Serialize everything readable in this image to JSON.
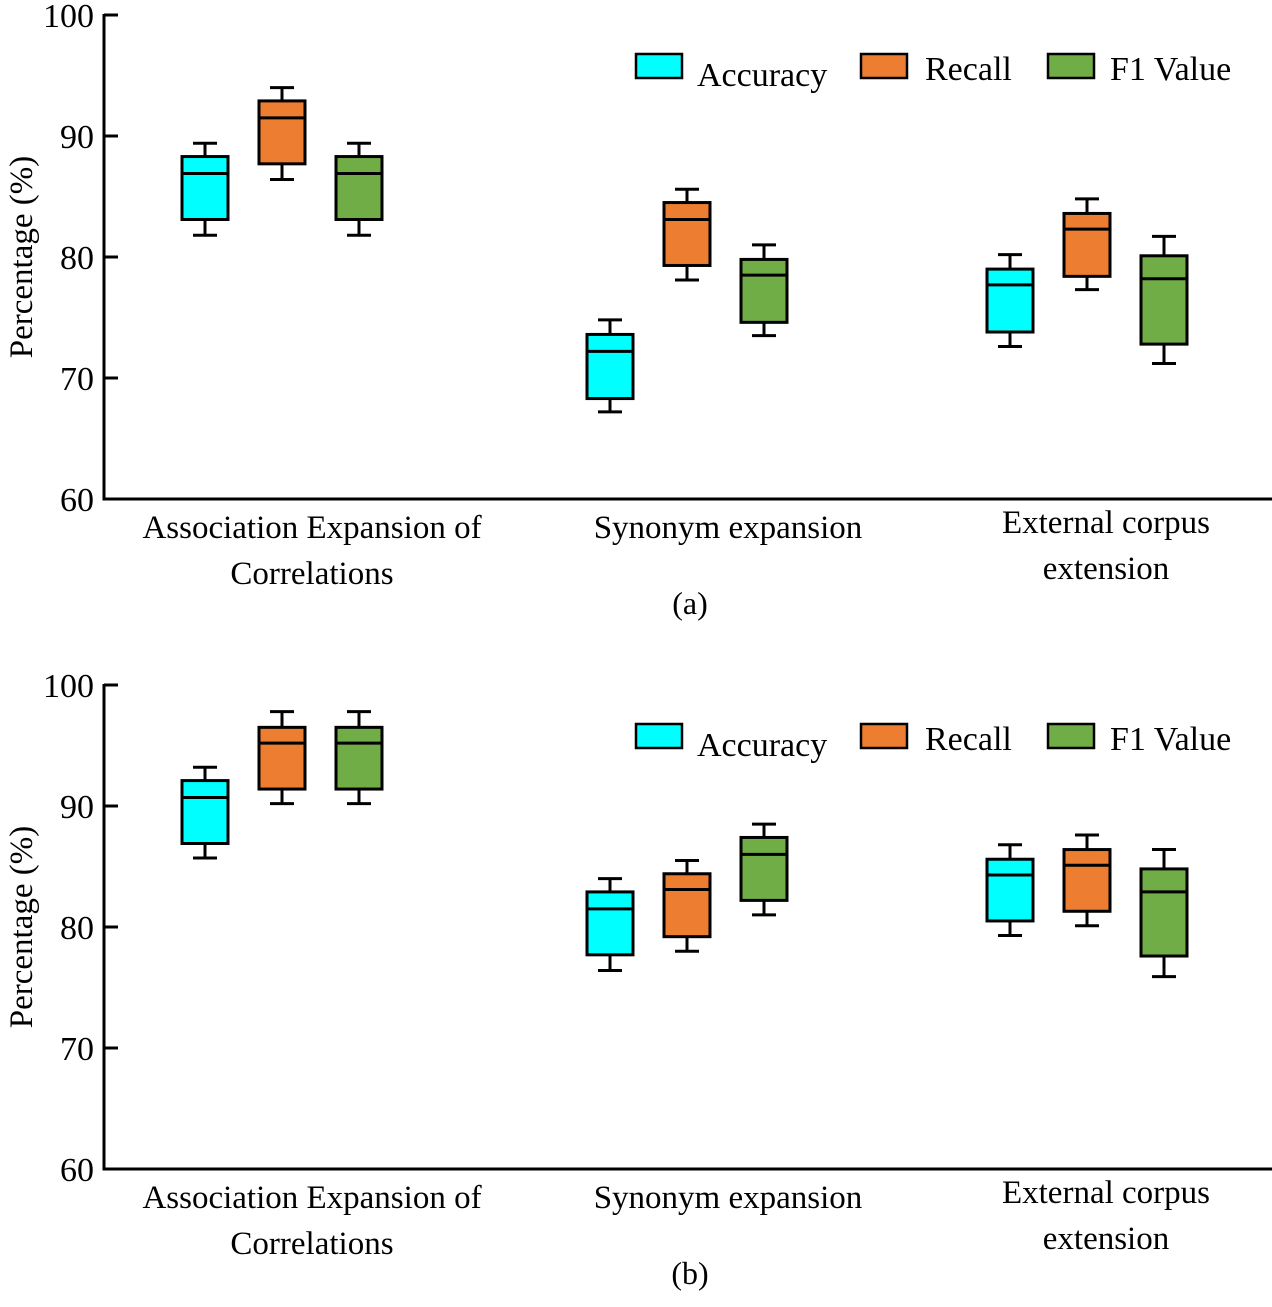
{
  "chart_data": [
    {
      "type": "box",
      "panel_label": "(a)",
      "ylabel": "Percentage (%)",
      "xlabel": "",
      "ylim": [
        60,
        100
      ],
      "yticks": [
        60,
        70,
        80,
        90,
        100
      ],
      "grid": false,
      "legend_position": "top-right",
      "categories": [
        [
          "Association Expansion of",
          "Correlations"
        ],
        [
          "Synonym expansion"
        ],
        [
          "External corpus",
          "extension"
        ]
      ],
      "series": [
        {
          "name": "Accuracy",
          "color": "#00FFFF",
          "boxes": [
            {
              "min": 81.8,
              "q1": 83.1,
              "median": 86.9,
              "q3": 88.3,
              "max": 89.4
            },
            {
              "min": 67.2,
              "q1": 68.3,
              "median": 72.2,
              "q3": 73.6,
              "max": 74.8
            },
            {
              "min": 72.6,
              "q1": 73.8,
              "median": 77.7,
              "q3": 79.0,
              "max": 80.2
            }
          ]
        },
        {
          "name": "Recall",
          "color": "#ED7D31",
          "boxes": [
            {
              "min": 86.4,
              "q1": 87.7,
              "median": 91.5,
              "q3": 92.9,
              "max": 94.0
            },
            {
              "min": 78.1,
              "q1": 79.3,
              "median": 83.1,
              "q3": 84.5,
              "max": 85.6
            },
            {
              "min": 77.3,
              "q1": 78.4,
              "median": 82.3,
              "q3": 83.6,
              "max": 84.8
            }
          ]
        },
        {
          "name": "F1 Value",
          "color": "#70AD47",
          "boxes": [
            {
              "min": 81.8,
              "q1": 83.1,
              "median": 86.9,
              "q3": 88.3,
              "max": 89.4
            },
            {
              "min": 73.5,
              "q1": 74.6,
              "median": 78.5,
              "q3": 79.8,
              "max": 81.0
            },
            {
              "min": 71.2,
              "q1": 72.8,
              "median": 78.2,
              "q3": 80.1,
              "max": 81.7
            }
          ]
        }
      ]
    },
    {
      "type": "box",
      "panel_label": "(b)",
      "ylabel": "Percentage (%)",
      "xlabel": "",
      "ylim": [
        60,
        100
      ],
      "yticks": [
        60,
        70,
        80,
        90,
        100
      ],
      "grid": false,
      "legend_position": "top-right",
      "categories": [
        [
          "Association Expansion of",
          "Correlations"
        ],
        [
          "Synonym expansion"
        ],
        [
          "External corpus",
          "extension"
        ]
      ],
      "series": [
        {
          "name": "Accuracy",
          "color": "#00FFFF",
          "boxes": [
            {
              "min": 85.7,
              "q1": 86.9,
              "median": 90.7,
              "q3": 92.1,
              "max": 93.2
            },
            {
              "min": 76.4,
              "q1": 77.7,
              "median": 81.5,
              "q3": 82.9,
              "max": 84.0
            },
            {
              "min": 79.3,
              "q1": 80.5,
              "median": 84.3,
              "q3": 85.6,
              "max": 86.8
            }
          ]
        },
        {
          "name": "Recall",
          "color": "#ED7D31",
          "boxes": [
            {
              "min": 90.2,
              "q1": 91.4,
              "median": 95.2,
              "q3": 96.5,
              "max": 97.8
            },
            {
              "min": 78.0,
              "q1": 79.2,
              "median": 83.1,
              "q3": 84.4,
              "max": 85.5
            },
            {
              "min": 80.1,
              "q1": 81.3,
              "median": 85.1,
              "q3": 86.4,
              "max": 87.6
            }
          ]
        },
        {
          "name": "F1 Value",
          "color": "#70AD47",
          "boxes": [
            {
              "min": 90.2,
              "q1": 91.4,
              "median": 95.2,
              "q3": 96.5,
              "max": 97.8
            },
            {
              "min": 81.0,
              "q1": 82.2,
              "median": 86.0,
              "q3": 87.4,
              "max": 88.5
            },
            {
              "min": 75.9,
              "q1": 77.6,
              "median": 82.9,
              "q3": 84.8,
              "max": 86.4
            }
          ]
        }
      ]
    }
  ]
}
